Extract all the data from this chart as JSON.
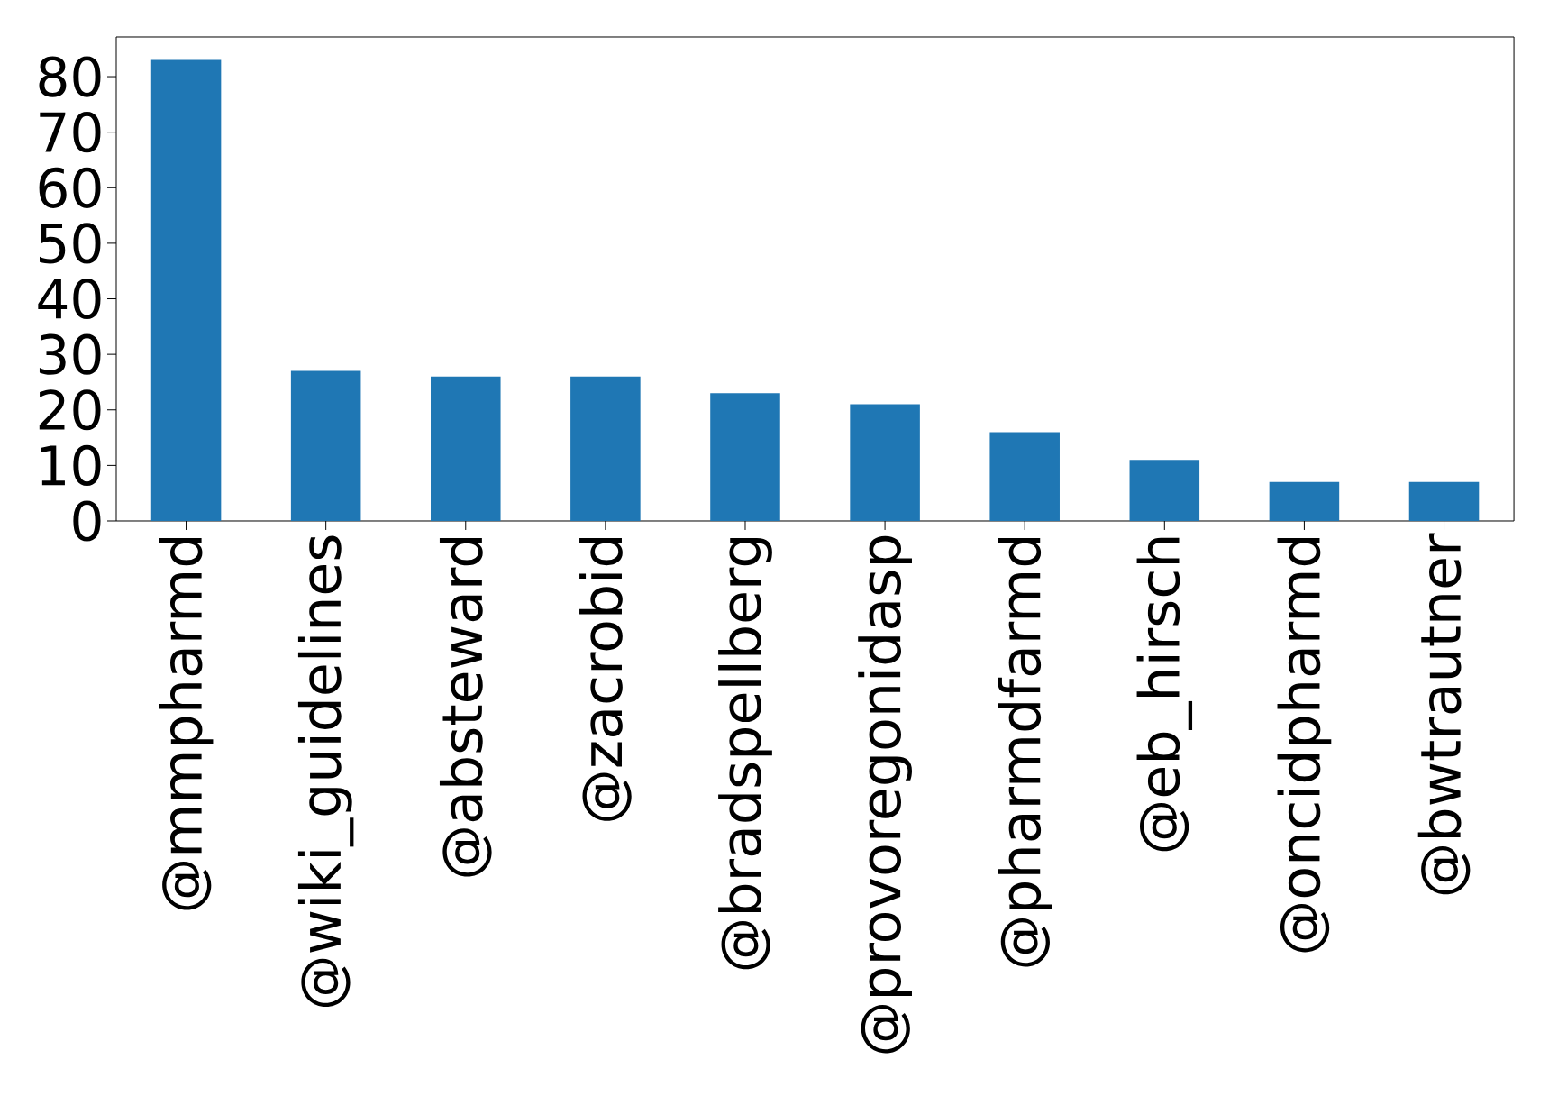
{
  "chart_data": {
    "type": "bar",
    "categories": [
      "@mmpharmd",
      "@wiki_guidelines",
      "@absteward",
      "@zacrobid",
      "@bradspellberg",
      "@provoregonidasp",
      "@pharmdfarmd",
      "@eb_hirsch",
      "@oncidpharmd",
      "@bwtrautner"
    ],
    "values": [
      83,
      27,
      26,
      26,
      23,
      21,
      16,
      11,
      7,
      7
    ],
    "color": "#1f77b4",
    "ylim": [
      0,
      87.15
    ],
    "yticks": [
      0,
      10,
      20,
      30,
      40,
      50,
      60,
      70,
      80
    ],
    "grid": false
  }
}
